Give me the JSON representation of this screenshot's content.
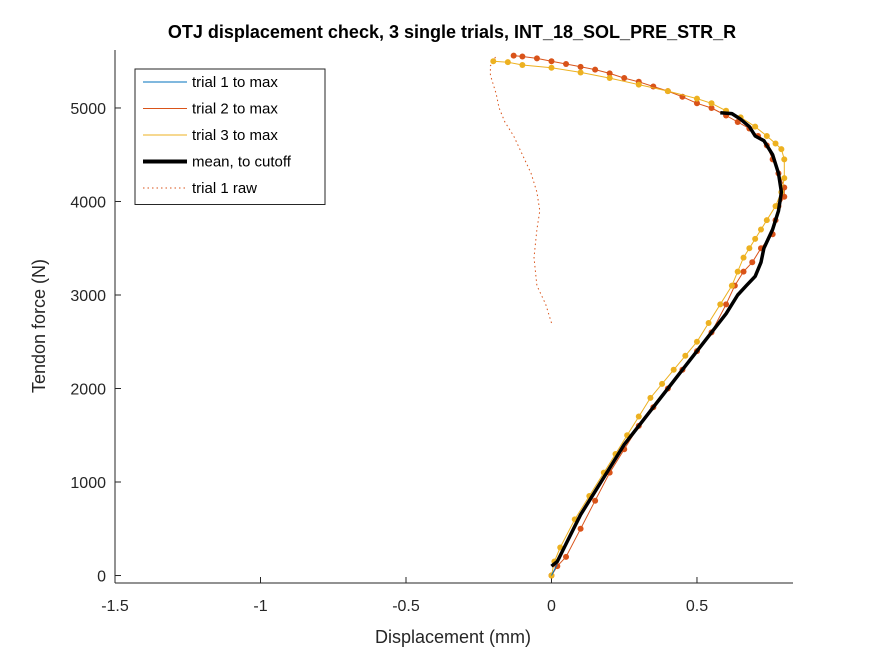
{
  "chart_data": {
    "type": "line",
    "title": "OTJ displacement check, 3 single trials, INT_18_SOL_PRE_STR_R",
    "xlabel": "Displacement (mm)",
    "ylabel": "Tendon force (N)",
    "xlim": [
      -1.5,
      0.83
    ],
    "ylim": [
      -80,
      5620
    ],
    "xticks": [
      -1.5,
      -1,
      -0.5,
      0,
      0.5
    ],
    "xtick_labels": [
      "-1.5",
      "-1",
      "-0.5",
      "0",
      "0.5"
    ],
    "yticks": [
      0,
      1000,
      2000,
      3000,
      4000,
      5000
    ],
    "ytick_labels": [
      "0",
      "1000",
      "2000",
      "3000",
      "4000",
      "5000"
    ],
    "grid": false,
    "legend_position": "top-left",
    "series": [
      {
        "name": "trial 1 to max",
        "color": "#0072BD",
        "style": "solid",
        "x": [
          0,
          0.01,
          0.02
        ],
        "y": [
          0,
          60,
          120
        ]
      },
      {
        "name": "trial 2 to max",
        "color": "#D95319",
        "style": "solid",
        "markers": true,
        "x": [
          0,
          0.02,
          0.05,
          0.1,
          0.15,
          0.2,
          0.25,
          0.3,
          0.35,
          0.4,
          0.45,
          0.5,
          0.55,
          0.6,
          0.63,
          0.66,
          0.69,
          0.72,
          0.76,
          0.77,
          0.78,
          0.8,
          0.8,
          0.78,
          0.76,
          0.74,
          0.71,
          0.68,
          0.64,
          0.6,
          0.55,
          0.5,
          0.45,
          0.4,
          0.35,
          0.3,
          0.25,
          0.2,
          0.15,
          0.1,
          0.05,
          0,
          -0.05,
          -0.1,
          -0.13
        ],
        "y": [
          0,
          100,
          200,
          500,
          800,
          1100,
          1350,
          1600,
          1800,
          2000,
          2200,
          2400,
          2600,
          2900,
          3100,
          3250,
          3350,
          3500,
          3650,
          3800,
          3950,
          4050,
          4150,
          4300,
          4450,
          4600,
          4700,
          4780,
          4850,
          4920,
          5000,
          5050,
          5120,
          5180,
          5230,
          5280,
          5320,
          5370,
          5410,
          5440,
          5470,
          5500,
          5530,
          5550,
          5560
        ]
      },
      {
        "name": "trial 3 to max",
        "color": "#EDB120",
        "style": "solid",
        "markers": true,
        "x": [
          0,
          0.01,
          0.03,
          0.08,
          0.13,
          0.18,
          0.22,
          0.26,
          0.3,
          0.34,
          0.38,
          0.42,
          0.46,
          0.5,
          0.54,
          0.58,
          0.62,
          0.64,
          0.66,
          0.68,
          0.7,
          0.72,
          0.74,
          0.77,
          0.79,
          0.8,
          0.8,
          0.79,
          0.77,
          0.74,
          0.7,
          0.65,
          0.6,
          0.55,
          0.5,
          0.4,
          0.3,
          0.2,
          0.1,
          0,
          -0.1,
          -0.15,
          -0.2
        ],
        "y": [
          0,
          150,
          300,
          600,
          850,
          1100,
          1300,
          1500,
          1700,
          1900,
          2050,
          2200,
          2350,
          2500,
          2700,
          2900,
          3100,
          3250,
          3400,
          3500,
          3600,
          3700,
          3800,
          3950,
          4100,
          4250,
          4450,
          4560,
          4620,
          4700,
          4800,
          4900,
          4970,
          5050,
          5100,
          5180,
          5250,
          5320,
          5380,
          5430,
          5460,
          5490,
          5500
        ]
      },
      {
        "name": "mean, to cutoff",
        "color": "#000000",
        "style": "solid-thick",
        "x": [
          0,
          0.02,
          0.06,
          0.1,
          0.15,
          0.2,
          0.25,
          0.3,
          0.35,
          0.4,
          0.45,
          0.5,
          0.55,
          0.6,
          0.64,
          0.67,
          0.7,
          0.72,
          0.73,
          0.76,
          0.78,
          0.79,
          0.78,
          0.76,
          0.73,
          0.7,
          0.68,
          0.65,
          0.62,
          0.58
        ],
        "y": [
          100,
          150,
          400,
          650,
          900,
          1150,
          1400,
          1600,
          1800,
          2000,
          2200,
          2400,
          2600,
          2800,
          3000,
          3100,
          3200,
          3350,
          3500,
          3700,
          3900,
          4100,
          4300,
          4500,
          4650,
          4700,
          4800,
          4880,
          4940,
          4950
        ]
      },
      {
        "name": "trial 1 raw",
        "color": "#D95319",
        "style": "dotted",
        "x": [
          0,
          -0.02,
          -0.05,
          -0.06,
          -0.05,
          -0.04,
          -0.05,
          -0.07,
          -0.1,
          -0.13,
          -0.16,
          -0.18,
          -0.19,
          -0.2,
          -0.21,
          -0.21,
          -0.2,
          -0.19
        ],
        "y": [
          2700,
          2900,
          3100,
          3400,
          3700,
          3900,
          4100,
          4300,
          4500,
          4700,
          4850,
          5000,
          5150,
          5250,
          5350,
          5450,
          5500,
          5560
        ]
      }
    ]
  }
}
